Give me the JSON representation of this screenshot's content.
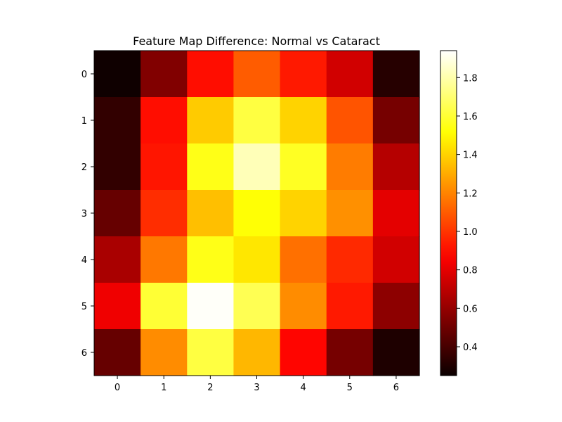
{
  "chart_data": {
    "type": "heatmap",
    "title": "Feature Map Difference: Normal vs Cataract",
    "xlabel": "",
    "ylabel": "",
    "x_ticks": [
      "0",
      "1",
      "2",
      "3",
      "4",
      "5",
      "6"
    ],
    "y_ticks": [
      "0",
      "1",
      "2",
      "3",
      "4",
      "5",
      "6"
    ],
    "values": [
      [
        0.26,
        0.55,
        0.9,
        1.1,
        0.93,
        0.75,
        0.32
      ],
      [
        0.35,
        0.9,
        1.38,
        1.62,
        1.4,
        1.08,
        0.52
      ],
      [
        0.35,
        0.92,
        1.55,
        1.82,
        1.57,
        1.18,
        0.68
      ],
      [
        0.48,
        0.98,
        1.35,
        1.52,
        1.4,
        1.23,
        0.8
      ],
      [
        0.65,
        1.17,
        1.55,
        1.45,
        1.15,
        0.97,
        0.75
      ],
      [
        0.83,
        1.6,
        1.93,
        1.65,
        1.22,
        0.93,
        0.58
      ],
      [
        0.48,
        1.22,
        1.62,
        1.33,
        0.88,
        0.52,
        0.3
      ]
    ],
    "colormap": "hot",
    "colorbar": {
      "min": 0.25,
      "max": 1.94,
      "ticks": [
        "0.4",
        "0.6",
        "0.8",
        "1.0",
        "1.2",
        "1.4",
        "1.6",
        "1.8"
      ]
    },
    "grid": false
  }
}
